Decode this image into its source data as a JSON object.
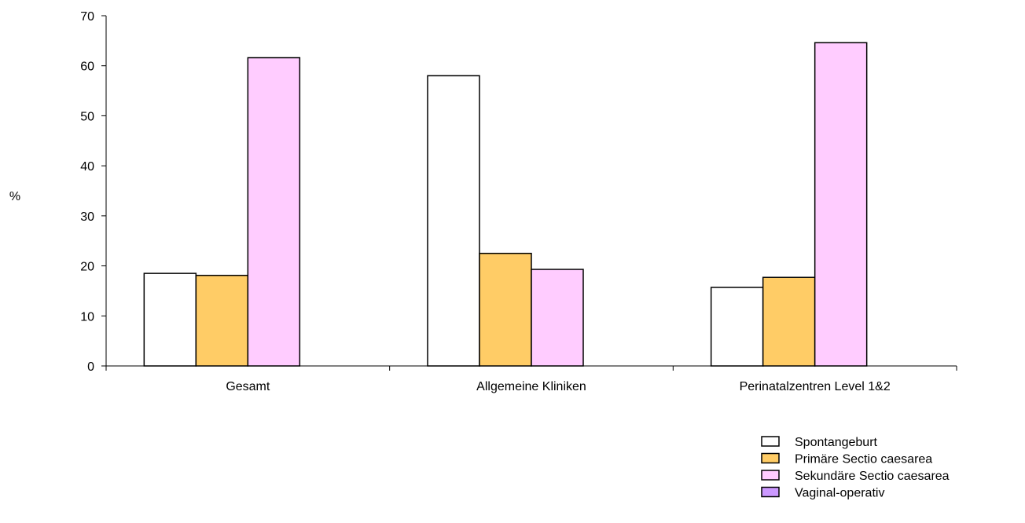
{
  "chart_data": {
    "type": "bar",
    "title": "",
    "xlabel": "",
    "ylabel": "%",
    "ylim": [
      0,
      70
    ],
    "yticks": [
      0,
      10,
      20,
      30,
      40,
      50,
      60,
      70
    ],
    "categories": [
      "Gesamt",
      "Allgemeine Kliniken",
      "Perinatalzentren Level 1&2"
    ],
    "series": [
      {
        "name": "Spontangeburt",
        "color": "#FFFFFF",
        "values": [
          18.5,
          58.0,
          15.7
        ]
      },
      {
        "name": "Primäre Sectio caesarea",
        "color": "#FFCC66",
        "values": [
          18.1,
          22.5,
          17.7
        ]
      },
      {
        "name": "Sekundäre Sectio caesarea",
        "color": "#FFCCFF",
        "values": [
          61.6,
          19.3,
          64.6
        ]
      },
      {
        "name": "Vaginal-operativ",
        "color": "#CC99FF",
        "values": [
          0,
          0,
          0
        ]
      }
    ],
    "grid": false,
    "legend_position": "bottom-right"
  }
}
